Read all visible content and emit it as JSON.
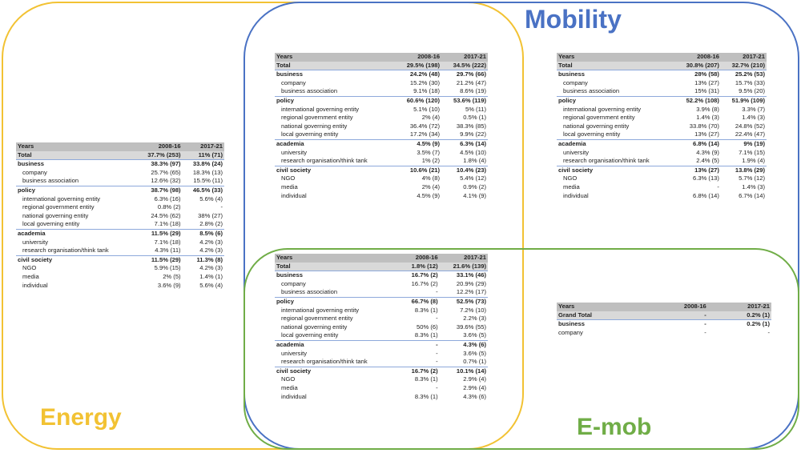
{
  "labels": {
    "energy": "Energy",
    "mobility": "Mobility",
    "emob": "E-mob"
  },
  "colors": {
    "energy": "#F2C233",
    "mobility": "#4A72C4",
    "emob": "#70AD47",
    "header_fill": "#BFBFBF",
    "total_fill": "#D9D9D9"
  },
  "tables": [
    {
      "id": "tbl-energy",
      "header": [
        "Years",
        "2008-16",
        "2017-21"
      ],
      "rows": [
        {
          "t": "total",
          "name": "Total",
          "a": "37.7% (253)",
          "b": "11% (71)"
        },
        {
          "t": "group",
          "name": "business",
          "a": "38.3% (97)",
          "b": "33.8% (24)"
        },
        {
          "t": "sub",
          "name": "company",
          "a": "25.7% (65)",
          "b": "18.3% (13)"
        },
        {
          "t": "sub",
          "name": "business association",
          "a": "12.6% (32)",
          "b": "15.5% (11)"
        },
        {
          "t": "group",
          "name": "policy",
          "a": "38.7% (98)",
          "b": "46.5% (33)"
        },
        {
          "t": "sub",
          "name": "international governing entity",
          "a": "6.3% (16)",
          "b": "5.6% (4)"
        },
        {
          "t": "sub",
          "name": "regional government entity",
          "a": "0.8% (2)",
          "b": "-"
        },
        {
          "t": "sub",
          "name": "national governing entity",
          "a": "24.5% (62)",
          "b": "38% (27)"
        },
        {
          "t": "sub",
          "name": "local governing entity",
          "a": "7.1% (18)",
          "b": "2.8% (2)"
        },
        {
          "t": "group",
          "name": "academia",
          "a": "11.5% (29)",
          "b": "8.5% (6)"
        },
        {
          "t": "sub",
          "name": "university",
          "a": "7.1% (18)",
          "b": "4.2% (3)"
        },
        {
          "t": "sub",
          "name": "research organisation/think tank",
          "a": "4.3% (11)",
          "b": "4.2% (3)"
        },
        {
          "t": "group",
          "name": "civil society",
          "a": "11.5% (29)",
          "b": "11.3% (8)"
        },
        {
          "t": "sub",
          "name": "NGO",
          "a": "5.9% (15)",
          "b": "4.2% (3)"
        },
        {
          "t": "sub",
          "name": "media",
          "a": "2% (5)",
          "b": "1.4% (1)"
        },
        {
          "t": "sub",
          "name": "individual",
          "a": "3.6% (9)",
          "b": "5.6% (4)"
        }
      ]
    },
    {
      "id": "tbl-mobility",
      "header": [
        "Years",
        "2008-16",
        "2017-21"
      ],
      "rows": [
        {
          "t": "total",
          "name": "Total",
          "a": "29.5% (198)",
          "b": "34.5% (222)"
        },
        {
          "t": "group",
          "name": "business",
          "a": "24.2% (48)",
          "b": "29.7% (66)"
        },
        {
          "t": "sub",
          "name": "company",
          "a": "15.2% (30)",
          "b": "21.2% (47)"
        },
        {
          "t": "sub",
          "name": "business association",
          "a": "9.1% (18)",
          "b": "8.6% (19)"
        },
        {
          "t": "group",
          "name": "policy",
          "a": "60.6% (120)",
          "b": "53.6% (119)"
        },
        {
          "t": "sub",
          "name": "international governing entity",
          "a": "5.1% (10)",
          "b": "5% (11)"
        },
        {
          "t": "sub",
          "name": "regional government entity",
          "a": "2% (4)",
          "b": "0.5% (1)"
        },
        {
          "t": "sub",
          "name": "national governing entity",
          "a": "36.4% (72)",
          "b": "38.3% (85)"
        },
        {
          "t": "sub",
          "name": "local governing entity",
          "a": "17.2% (34)",
          "b": "9.9% (22)"
        },
        {
          "t": "group",
          "name": "academia",
          "a": "4.5% (9)",
          "b": "6.3% (14)"
        },
        {
          "t": "sub",
          "name": "university",
          "a": "3.5% (7)",
          "b": "4.5% (10)"
        },
        {
          "t": "sub",
          "name": "research organisation/think tank",
          "a": "1% (2)",
          "b": "1.8% (4)"
        },
        {
          "t": "group",
          "name": "civil society",
          "a": "10.6% (21)",
          "b": "10.4% (23)"
        },
        {
          "t": "sub",
          "name": "NGO",
          "a": "4% (8)",
          "b": "5.4% (12)"
        },
        {
          "t": "sub",
          "name": "media",
          "a": "2% (4)",
          "b": "0.9% (2)"
        },
        {
          "t": "sub",
          "name": "individual",
          "a": "4.5% (9)",
          "b": "4.1% (9)"
        }
      ]
    },
    {
      "id": "tbl-energymob",
      "header": [
        "Years",
        "2008-16",
        "2017-21"
      ],
      "rows": [
        {
          "t": "total",
          "name": "Total",
          "a": "30.8% (207)",
          "b": "32.7% (210)"
        },
        {
          "t": "group",
          "name": "business",
          "a": "28% (58)",
          "b": "25.2% (53)"
        },
        {
          "t": "sub",
          "name": "company",
          "a": "13% (27)",
          "b": "15.7% (33)"
        },
        {
          "t": "sub",
          "name": "business association",
          "a": "15% (31)",
          "b": "9.5% (20)"
        },
        {
          "t": "group",
          "name": "policy",
          "a": "52.2% (108)",
          "b": "51.9% (109)"
        },
        {
          "t": "sub",
          "name": "international governing entity",
          "a": "3.9% (8)",
          "b": "3.3% (7)"
        },
        {
          "t": "sub",
          "name": "regional government entity",
          "a": "1.4% (3)",
          "b": "1.4% (3)"
        },
        {
          "t": "sub",
          "name": "national governing entity",
          "a": "33.8% (70)",
          "b": "24.8% (52)"
        },
        {
          "t": "sub",
          "name": "local governing entity",
          "a": "13% (27)",
          "b": "22.4% (47)"
        },
        {
          "t": "group",
          "name": "academia",
          "a": "6.8% (14)",
          "b": "9% (19)"
        },
        {
          "t": "sub",
          "name": "university",
          "a": "4.3% (9)",
          "b": "7.1% (15)"
        },
        {
          "t": "sub",
          "name": "research organisation/think tank",
          "a": "2.4% (5)",
          "b": "1.9% (4)"
        },
        {
          "t": "group",
          "name": "civil society",
          "a": "13% (27)",
          "b": "13.8% (29)"
        },
        {
          "t": "sub",
          "name": "NGO",
          "a": "6.3% (13)",
          "b": "5.7% (12)"
        },
        {
          "t": "sub",
          "name": "media",
          "a": "-",
          "b": "1.4% (3)"
        },
        {
          "t": "sub",
          "name": "individual",
          "a": "6.8% (14)",
          "b": "6.7% (14)"
        }
      ]
    },
    {
      "id": "tbl-emob-all",
      "header": [
        "Years",
        "2008-16",
        "2017-21"
      ],
      "rows": [
        {
          "t": "total",
          "name": "Total",
          "a": "1.8% (12)",
          "b": "21.6% (139)"
        },
        {
          "t": "group",
          "name": "business",
          "a": "16.7% (2)",
          "b": "33.1% (46)"
        },
        {
          "t": "sub",
          "name": "company",
          "a": "16.7% (2)",
          "b": "20.9% (29)"
        },
        {
          "t": "sub",
          "name": "business association",
          "a": "-",
          "b": "12.2% (17)"
        },
        {
          "t": "group",
          "name": "policy",
          "a": "66.7% (8)",
          "b": "52.5% (73)"
        },
        {
          "t": "sub",
          "name": "international governing entity",
          "a": "8.3% (1)",
          "b": "7.2% (10)"
        },
        {
          "t": "sub",
          "name": "regional government entity",
          "a": "-",
          "b": "2.2% (3)"
        },
        {
          "t": "sub",
          "name": "national governing entity",
          "a": "50% (6)",
          "b": "39.6% (55)"
        },
        {
          "t": "sub",
          "name": "local governing entity",
          "a": "8.3% (1)",
          "b": "3.6% (5)"
        },
        {
          "t": "group",
          "name": "academia",
          "a": "-",
          "b": "4.3% (6)"
        },
        {
          "t": "sub",
          "name": "university",
          "a": "-",
          "b": "3.6% (5)"
        },
        {
          "t": "sub",
          "name": "research organisation/think tank",
          "a": "-",
          "b": "0.7% (1)"
        },
        {
          "t": "group",
          "name": "civil society",
          "a": "16.7% (2)",
          "b": "10.1% (14)"
        },
        {
          "t": "sub",
          "name": "NGO",
          "a": "8.3% (1)",
          "b": "2.9% (4)"
        },
        {
          "t": "sub",
          "name": "media",
          "a": "-",
          "b": "2.9% (4)"
        },
        {
          "t": "sub",
          "name": "individual",
          "a": "8.3% (1)",
          "b": "4.3% (6)"
        }
      ]
    },
    {
      "id": "tbl-emob-only",
      "header": [
        "Years",
        "2008-16",
        "2017-21"
      ],
      "rows": [
        {
          "t": "total",
          "name": "Grand Total",
          "a": "-",
          "b": "0.2% (1)"
        },
        {
          "t": "group",
          "name": "business",
          "a": "-",
          "b": "0.2% (1)"
        },
        {
          "t": "plain",
          "name": "company",
          "a": "-",
          "b": "-"
        }
      ]
    }
  ]
}
